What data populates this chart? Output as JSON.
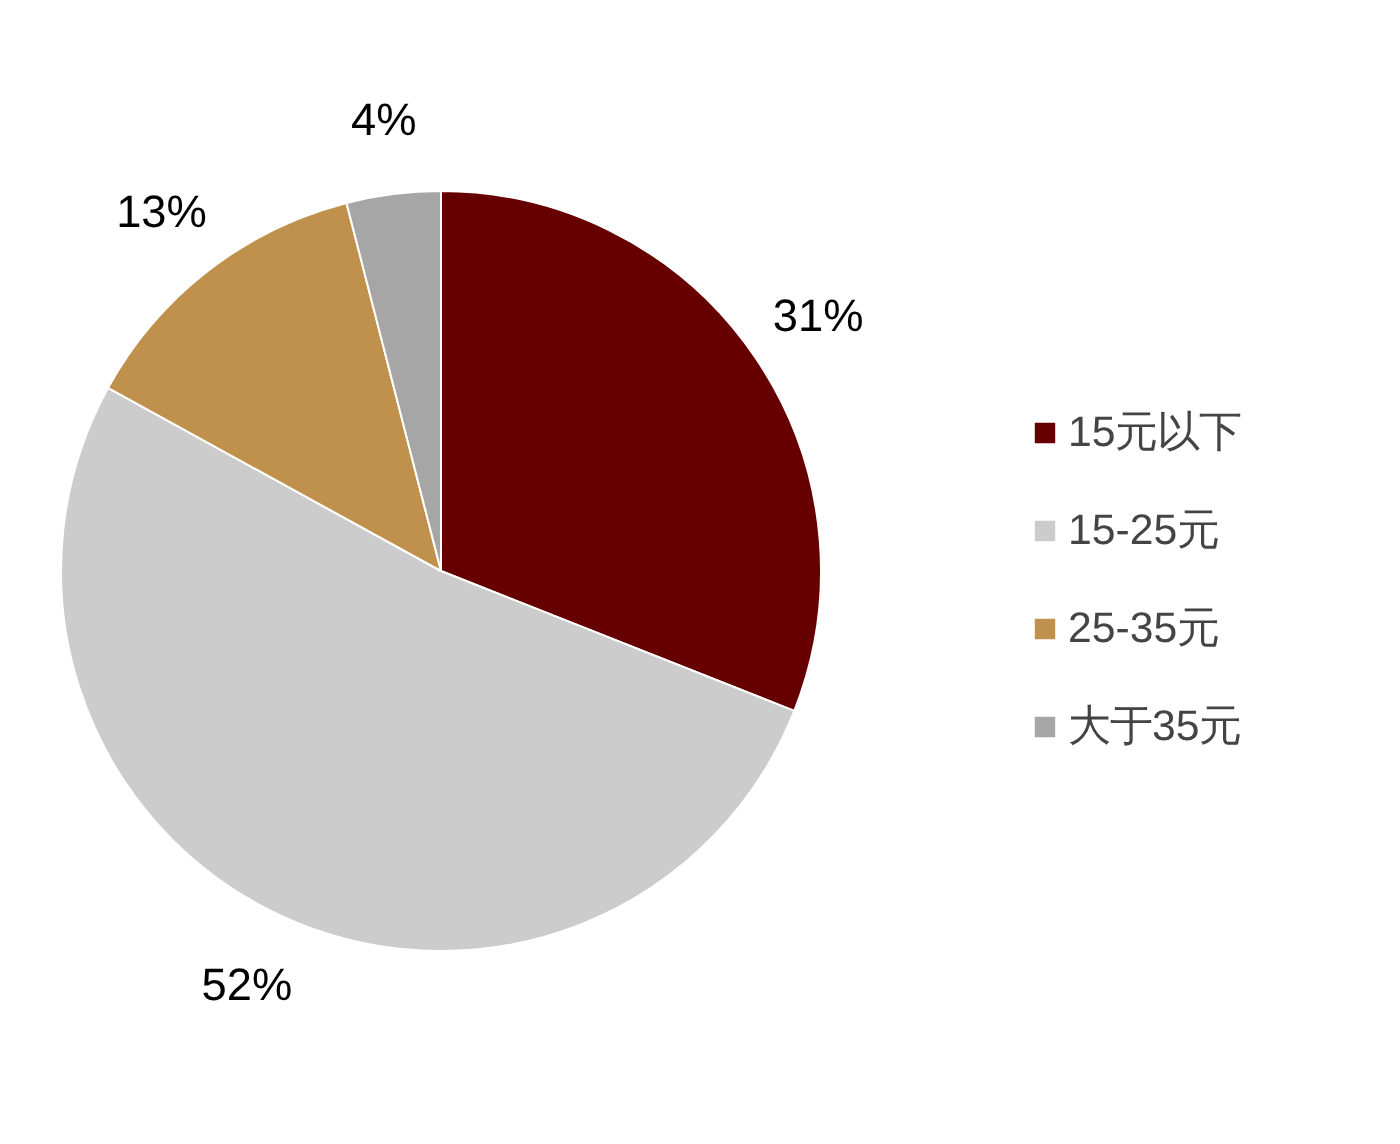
{
  "chart_data": {
    "type": "pie",
    "categories": [
      "15元以下",
      "15-25元",
      "25-35元",
      "大于35元"
    ],
    "values": [
      31,
      52,
      13,
      4
    ],
    "colors": [
      "#660000",
      "#cccccc",
      "#c0904d",
      "#a6a6a6"
    ],
    "value_labels": [
      "31%",
      "52%",
      "13%",
      "4%"
    ],
    "legend": "right"
  }
}
